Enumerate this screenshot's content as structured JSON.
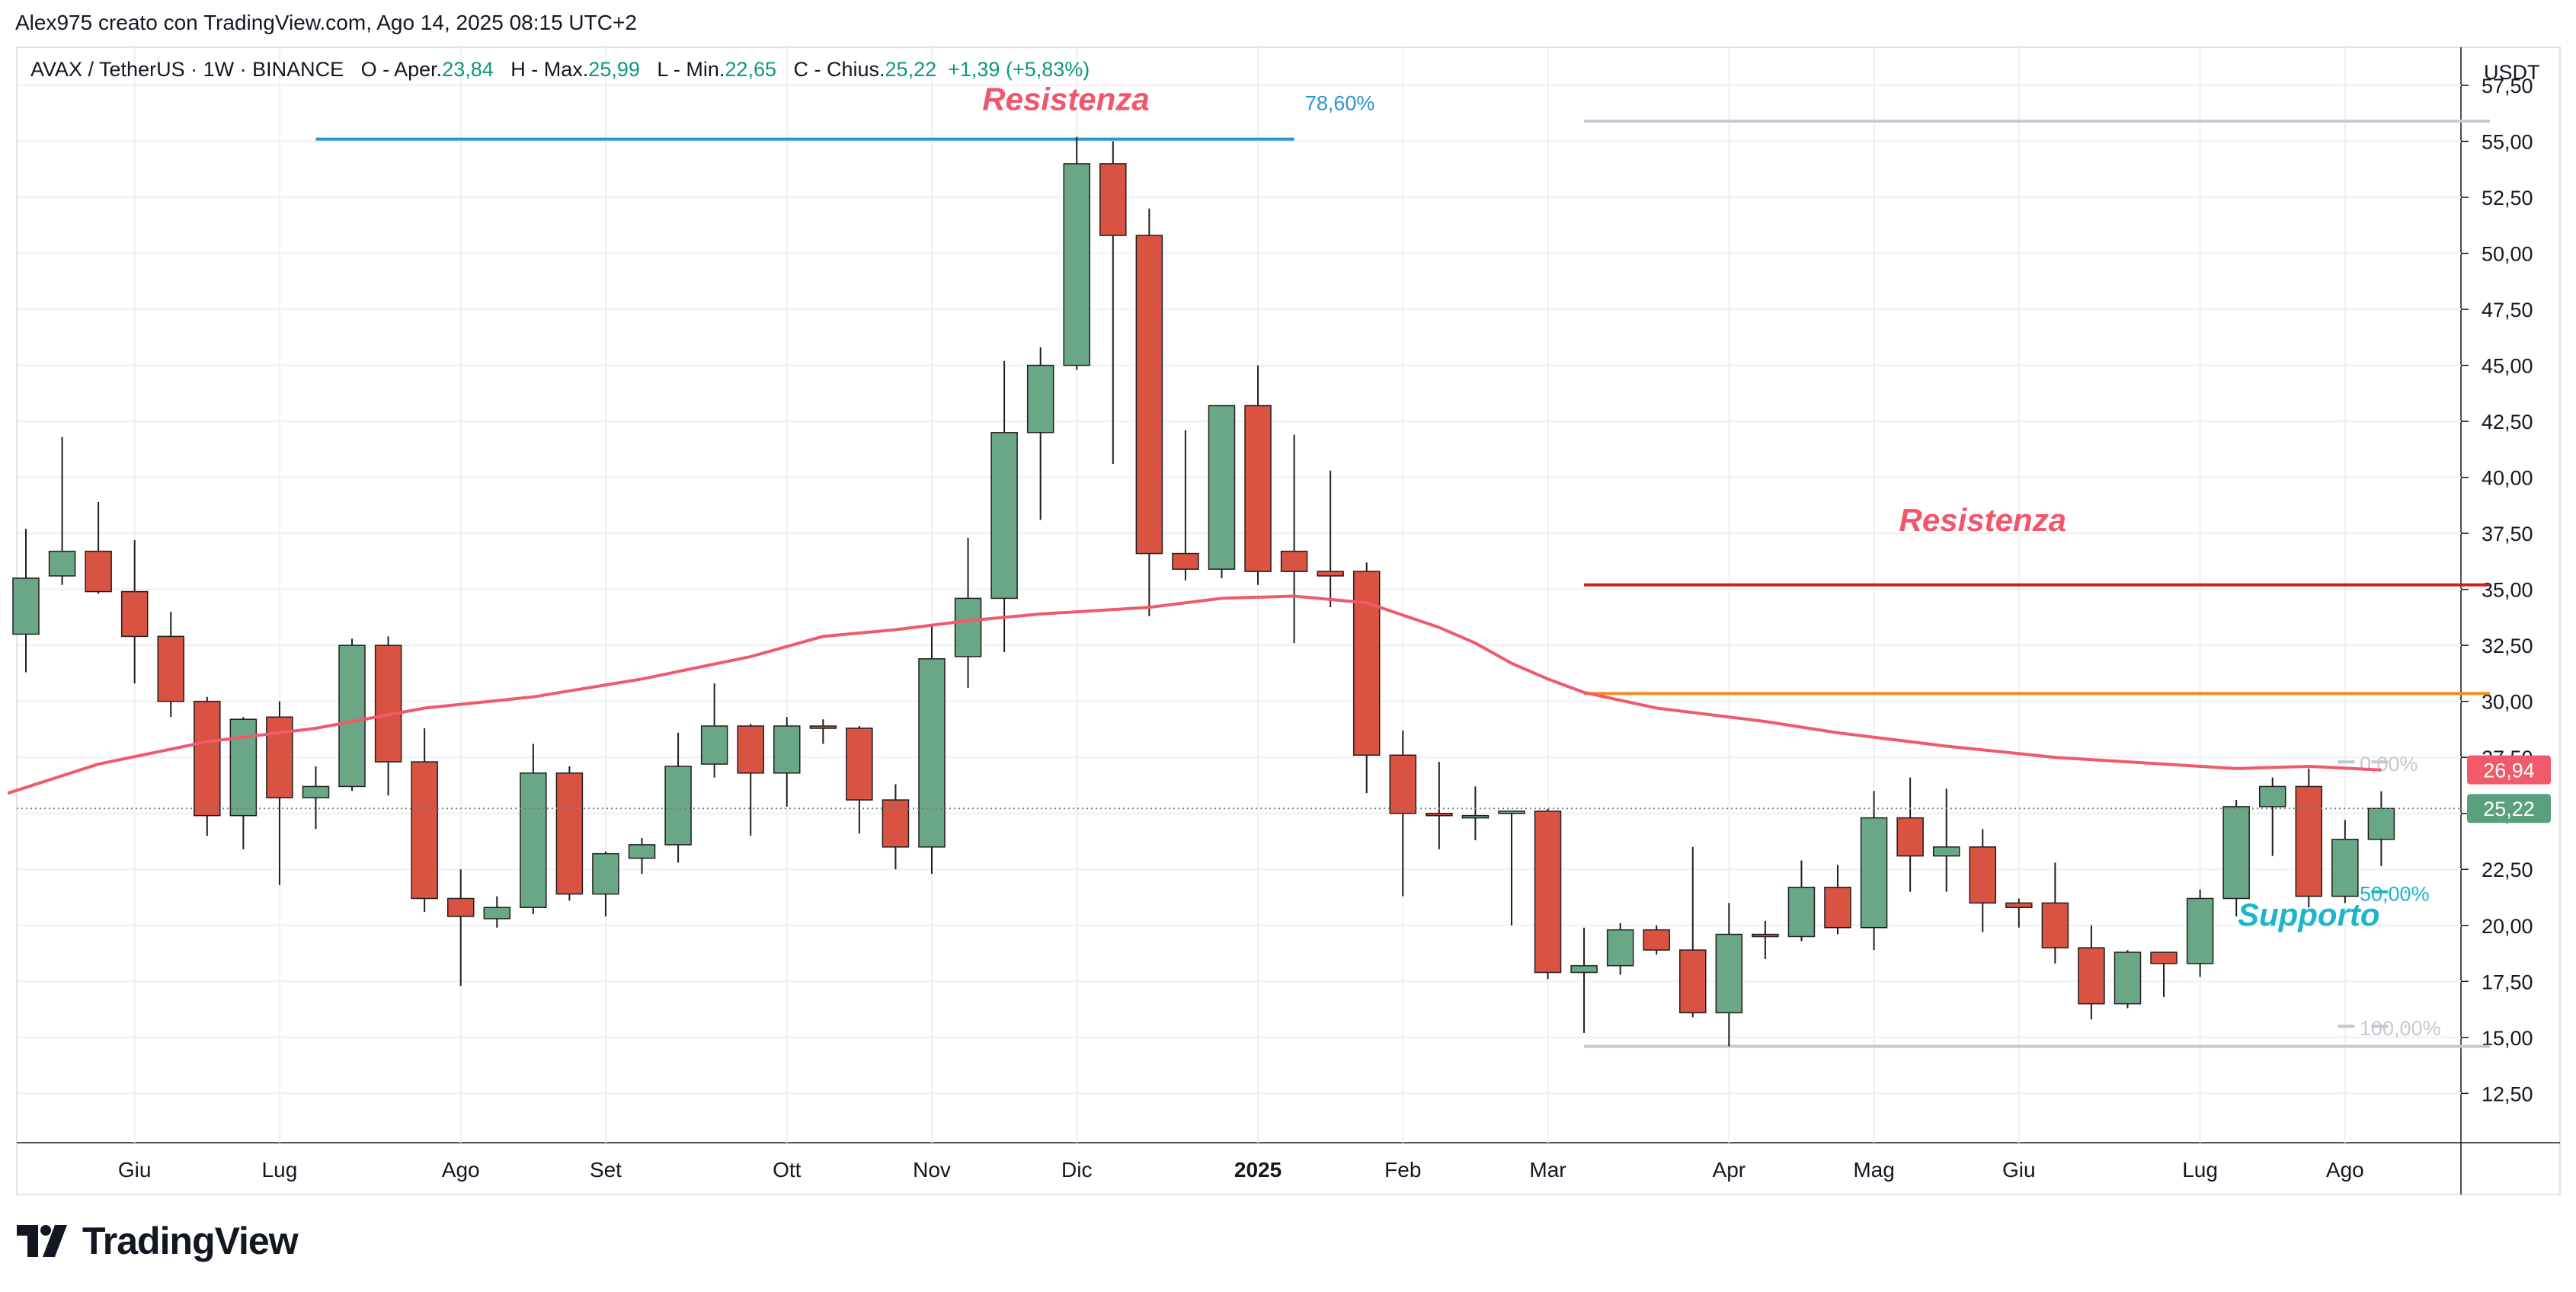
{
  "header": {
    "author_line": "Alex975 creato con TradingView.com, Ago 14, 2025 08:15 UTC+2"
  },
  "legend": {
    "symbol": "AVAX / TetherUS · 1W · BINANCE",
    "open_label": "O - Aper.",
    "open_value": "23,84",
    "high_label": "H - Max.",
    "high_value": "25,99",
    "low_label": "L - Min.",
    "low_value": "22,65",
    "close_label": "C - Chius.",
    "close_value": "25,22",
    "change_value": "+1,39 (+5,83%)"
  },
  "branding": {
    "logo_text": "TradingView"
  },
  "colors": {
    "up": "#6aa787",
    "down": "#da5241",
    "wick": "#1f1f1f",
    "ma": "#f05a6a",
    "resist_top": "#2a96d1",
    "resist_mid": "#d01a22",
    "orange_line": "#f28a1e",
    "support_text": "#1cb6cc",
    "fib_text": "#c6c9d0",
    "grid": "#eef0f3"
  },
  "chart_data": {
    "type": "candlestick",
    "symbol": "AVAX / TetherUS",
    "interval": "1W",
    "exchange": "BINANCE",
    "currency_label": "USDT",
    "ylim": [
      10.3,
      59.2
    ],
    "y_ticks": [
      "57,50",
      "55,00",
      "52,50",
      "50,00",
      "47,50",
      "45,00",
      "42,50",
      "40,00",
      "37,50",
      "35,00",
      "32,50",
      "30,00",
      "27,50",
      "25,00",
      "22,50",
      "20,00",
      "17,50",
      "15,00",
      "12,50"
    ],
    "x_ticks": [
      {
        "label": "Giu",
        "bold": false,
        "week": 3
      },
      {
        "label": "Lug",
        "bold": false,
        "week": 7
      },
      {
        "label": "Ago",
        "bold": false,
        "week": 12
      },
      {
        "label": "Set",
        "bold": false,
        "week": 16
      },
      {
        "label": "Ott",
        "bold": false,
        "week": 21
      },
      {
        "label": "Nov",
        "bold": false,
        "week": 25
      },
      {
        "label": "Dic",
        "bold": false,
        "week": 29
      },
      {
        "label": "2025",
        "bold": true,
        "week": 34
      },
      {
        "label": "Feb",
        "bold": false,
        "week": 38
      },
      {
        "label": "Mar",
        "bold": false,
        "week": 42
      },
      {
        "label": "Apr",
        "bold": false,
        "week": 47
      },
      {
        "label": "Mag",
        "bold": false,
        "week": 51
      },
      {
        "label": "Giu",
        "bold": false,
        "week": 55
      },
      {
        "label": "Lug",
        "bold": false,
        "week": 60
      },
      {
        "label": "Ago",
        "bold": false,
        "week": 64
      }
    ],
    "candles": [
      {
        "o": 33.0,
        "h": 37.7,
        "l": 31.3,
        "c": 35.5
      },
      {
        "o": 35.6,
        "h": 41.8,
        "l": 35.2,
        "c": 36.7
      },
      {
        "o": 36.7,
        "h": 38.9,
        "l": 34.8,
        "c": 34.9
      },
      {
        "o": 34.9,
        "h": 37.2,
        "l": 30.8,
        "c": 32.9
      },
      {
        "o": 32.9,
        "h": 34.0,
        "l": 29.3,
        "c": 30.0
      },
      {
        "o": 30.0,
        "h": 30.2,
        "l": 24.0,
        "c": 24.9
      },
      {
        "o": 24.9,
        "h": 29.3,
        "l": 23.4,
        "c": 29.2
      },
      {
        "o": 29.3,
        "h": 30.0,
        "l": 21.8,
        "c": 25.7
      },
      {
        "o": 25.7,
        "h": 27.1,
        "l": 24.3,
        "c": 26.2
      },
      {
        "o": 26.2,
        "h": 32.8,
        "l": 26.0,
        "c": 32.5
      },
      {
        "o": 32.5,
        "h": 32.9,
        "l": 25.8,
        "c": 27.3
      },
      {
        "o": 27.3,
        "h": 28.8,
        "l": 20.6,
        "c": 21.2
      },
      {
        "o": 21.2,
        "h": 22.5,
        "l": 17.3,
        "c": 20.4
      },
      {
        "o": 20.3,
        "h": 21.3,
        "l": 19.9,
        "c": 20.8
      },
      {
        "o": 20.8,
        "h": 28.1,
        "l": 20.5,
        "c": 26.8
      },
      {
        "o": 26.8,
        "h": 27.1,
        "l": 21.1,
        "c": 21.4
      },
      {
        "o": 21.4,
        "h": 23.3,
        "l": 20.4,
        "c": 23.2
      },
      {
        "o": 23.0,
        "h": 23.9,
        "l": 22.3,
        "c": 23.6
      },
      {
        "o": 23.6,
        "h": 28.6,
        "l": 22.8,
        "c": 27.1
      },
      {
        "o": 27.2,
        "h": 30.8,
        "l": 26.6,
        "c": 28.9
      },
      {
        "o": 28.9,
        "h": 29.0,
        "l": 24.0,
        "c": 26.8
      },
      {
        "o": 26.8,
        "h": 29.3,
        "l": 25.3,
        "c": 28.9
      },
      {
        "o": 28.9,
        "h": 29.2,
        "l": 28.1,
        "c": 28.8
      },
      {
        "o": 28.8,
        "h": 28.9,
        "l": 24.1,
        "c": 25.6
      },
      {
        "o": 25.6,
        "h": 26.3,
        "l": 22.5,
        "c": 23.5
      },
      {
        "o": 23.5,
        "h": 33.4,
        "l": 22.3,
        "c": 31.9
      },
      {
        "o": 32.0,
        "h": 37.3,
        "l": 30.6,
        "c": 34.6
      },
      {
        "o": 34.6,
        "h": 45.2,
        "l": 32.2,
        "c": 42.0
      },
      {
        "o": 42.0,
        "h": 45.8,
        "l": 38.1,
        "c": 45.0
      },
      {
        "o": 45.0,
        "h": 55.2,
        "l": 44.8,
        "c": 54.0
      },
      {
        "o": 54.0,
        "h": 55.0,
        "l": 40.6,
        "c": 50.8
      },
      {
        "o": 50.8,
        "h": 52.0,
        "l": 33.8,
        "c": 36.6
      },
      {
        "o": 36.6,
        "h": 42.1,
        "l": 35.4,
        "c": 35.9
      },
      {
        "o": 35.9,
        "h": 43.2,
        "l": 35.5,
        "c": 43.2
      },
      {
        "o": 43.2,
        "h": 45.0,
        "l": 35.2,
        "c": 35.8
      },
      {
        "o": 36.7,
        "h": 41.9,
        "l": 32.6,
        "c": 35.8
      },
      {
        "o": 35.8,
        "h": 40.3,
        "l": 34.2,
        "c": 35.6
      },
      {
        "o": 35.8,
        "h": 36.2,
        "l": 25.9,
        "c": 27.6
      },
      {
        "o": 27.6,
        "h": 28.7,
        "l": 21.3,
        "c": 25.0
      },
      {
        "o": 25.0,
        "h": 27.3,
        "l": 23.4,
        "c": 24.9
      },
      {
        "o": 24.9,
        "h": 26.2,
        "l": 23.8,
        "c": 24.9
      },
      {
        "o": 25.0,
        "h": 25.1,
        "l": 20.0,
        "c": 25.1
      },
      {
        "o": 25.1,
        "h": 25.2,
        "l": 17.6,
        "c": 17.9
      },
      {
        "o": 17.9,
        "h": 19.9,
        "l": 15.2,
        "c": 18.2
      },
      {
        "o": 18.2,
        "h": 20.1,
        "l": 17.8,
        "c": 19.8
      },
      {
        "o": 19.8,
        "h": 20.0,
        "l": 18.7,
        "c": 18.9
      },
      {
        "o": 18.9,
        "h": 23.5,
        "l": 15.9,
        "c": 16.1
      },
      {
        "o": 16.1,
        "h": 21.0,
        "l": 14.6,
        "c": 19.6
      },
      {
        "o": 19.6,
        "h": 20.2,
        "l": 18.5,
        "c": 19.5
      },
      {
        "o": 19.5,
        "h": 22.9,
        "l": 19.3,
        "c": 21.7
      },
      {
        "o": 21.7,
        "h": 22.7,
        "l": 19.6,
        "c": 19.9
      },
      {
        "o": 19.9,
        "h": 26.0,
        "l": 18.9,
        "c": 24.8
      },
      {
        "o": 24.8,
        "h": 26.6,
        "l": 21.5,
        "c": 23.1
      },
      {
        "o": 23.1,
        "h": 26.1,
        "l": 21.5,
        "c": 23.5
      },
      {
        "o": 23.5,
        "h": 24.3,
        "l": 19.7,
        "c": 21.0
      },
      {
        "o": 21.0,
        "h": 21.2,
        "l": 19.9,
        "c": 20.8
      },
      {
        "o": 21.0,
        "h": 22.8,
        "l": 18.3,
        "c": 19.0
      },
      {
        "o": 19.0,
        "h": 20.0,
        "l": 15.8,
        "c": 16.5
      },
      {
        "o": 16.5,
        "h": 18.9,
        "l": 16.3,
        "c": 18.8
      },
      {
        "o": 18.8,
        "h": 18.8,
        "l": 16.8,
        "c": 18.3
      },
      {
        "o": 18.3,
        "h": 21.6,
        "l": 17.7,
        "c": 21.2
      },
      {
        "o": 21.2,
        "h": 25.6,
        "l": 20.4,
        "c": 25.3
      },
      {
        "o": 25.3,
        "h": 26.6,
        "l": 23.1,
        "c": 26.2
      },
      {
        "o": 26.2,
        "h": 27.0,
        "l": 20.8,
        "c": 21.3
      },
      {
        "o": 21.3,
        "h": 24.7,
        "l": 21.0,
        "c": 23.84
      },
      {
        "o": 23.84,
        "h": 25.99,
        "l": 22.65,
        "c": 25.22
      }
    ],
    "moving_average": {
      "points": [
        {
          "week": -0.5,
          "value": 25.9
        },
        {
          "week": 2,
          "value": 27.2
        },
        {
          "week": 5,
          "value": 28.2
        },
        {
          "week": 8,
          "value": 28.8
        },
        {
          "week": 11,
          "value": 29.7
        },
        {
          "week": 14,
          "value": 30.2
        },
        {
          "week": 17,
          "value": 31.0
        },
        {
          "week": 20,
          "value": 32.0
        },
        {
          "week": 22,
          "value": 32.9
        },
        {
          "week": 24,
          "value": 33.2
        },
        {
          "week": 26,
          "value": 33.6
        },
        {
          "week": 28,
          "value": 33.9
        },
        {
          "week": 31,
          "value": 34.2
        },
        {
          "week": 33,
          "value": 34.6
        },
        {
          "week": 35,
          "value": 34.7
        },
        {
          "week": 37,
          "value": 34.4
        },
        {
          "week": 39,
          "value": 33.3
        },
        {
          "week": 40,
          "value": 32.6
        },
        {
          "week": 41,
          "value": 31.7
        },
        {
          "week": 42,
          "value": 31.0
        },
        {
          "week": 43,
          "value": 30.4
        },
        {
          "week": 45,
          "value": 29.7
        },
        {
          "week": 48,
          "value": 29.1
        },
        {
          "week": 50,
          "value": 28.6
        },
        {
          "week": 53,
          "value": 28.0
        },
        {
          "week": 56,
          "value": 27.5
        },
        {
          "week": 59,
          "value": 27.2
        },
        {
          "week": 61,
          "value": 27.0
        },
        {
          "week": 63,
          "value": 27.1
        },
        {
          "week": 65,
          "value": 26.94
        }
      ]
    },
    "horizontal_lines": [
      {
        "name": "resistance-top",
        "price": 55.1,
        "from_week": 8,
        "to_week": 35,
        "color": "#2a96d1"
      },
      {
        "name": "level-upper-right",
        "price": 55.9,
        "from_week": 43,
        "to_week": 68,
        "color": "#c9c9d6"
      },
      {
        "name": "resistance-mid",
        "price": 35.2,
        "from_week": 43,
        "to_week": 68,
        "color": "#d01a22"
      },
      {
        "name": "orange-level",
        "price": 30.35,
        "from_week": 43,
        "to_week": 68,
        "color": "#f28a1e"
      },
      {
        "name": "support-base",
        "price": 14.6,
        "from_week": 43,
        "to_week": 68,
        "color": "#c6c9ce"
      }
    ],
    "fib_levels": [
      {
        "label": "0,00%",
        "price": 27.3
      },
      {
        "label": "50,00%",
        "price": 21.5
      },
      {
        "label": "100,00%",
        "price": 15.5
      }
    ],
    "annotations": [
      {
        "text": "Resistenza",
        "price": 56.4,
        "week": 28.7,
        "color": "#f2566c"
      },
      {
        "text": "78,60%",
        "price": 56.4,
        "week": 35.3,
        "color": "#2a96d1"
      },
      {
        "text": "Resistenza",
        "price": 37.6,
        "week": 54,
        "color": "#f2566c"
      },
      {
        "text": "Supporto",
        "price": 20.0,
        "week": 63,
        "color": "#1cb6cc"
      }
    ],
    "price_labels": [
      {
        "value": "26,94",
        "price": 26.94,
        "color": "#f05a6a"
      },
      {
        "value": "25,22",
        "price": 25.22,
        "color": "#5aa07c"
      }
    ],
    "last_price": 25.22
  }
}
